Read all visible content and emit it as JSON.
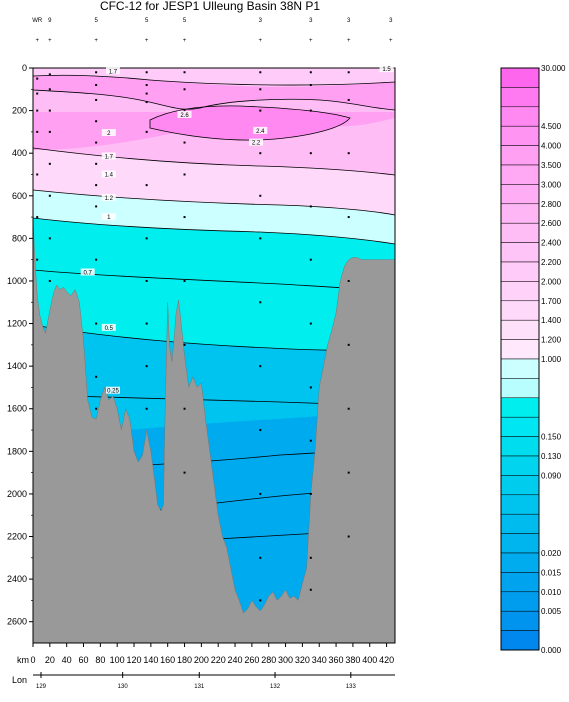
{
  "chart_data": {
    "type": "contour",
    "title": "CFC-12 for JESP1 Ulleung Basin 38N P1",
    "xlabel": "km",
    "x2label": "Lon",
    "x_ticks": [
      0,
      20,
      40,
      60,
      80,
      100,
      120,
      140,
      160,
      180,
      200,
      220,
      240,
      260,
      280,
      300,
      320,
      340,
      360,
      380,
      400,
      420
    ],
    "xlim": [
      0,
      430
    ],
    "lon_ticks": [
      {
        "lon": 129,
        "km": 0
      },
      {
        "lon": 130,
        "km": 97
      },
      {
        "lon": 131,
        "km": 188
      },
      {
        "lon": 132,
        "km": 278
      },
      {
        "lon": 133,
        "km": 368
      }
    ],
    "y_ticks": [
      0,
      200,
      400,
      600,
      800,
      1000,
      1200,
      1400,
      1600,
      1800,
      2000,
      2200,
      2400,
      2600
    ],
    "ylim": [
      0,
      2700
    ],
    "station_labels": [
      "WR",
      "9",
      "5",
      "5",
      "5",
      "3",
      "3",
      "3",
      "3"
    ],
    "station_km": [
      5,
      20,
      75,
      135,
      180,
      270,
      330,
      375,
      425
    ],
    "contour_labels": [
      {
        "text": "1.7",
        "km": 95,
        "depth": 20
      },
      {
        "text": "1.5",
        "km": 420,
        "depth": 10
      },
      {
        "text": "2.6",
        "km": 180,
        "depth": 225
      },
      {
        "text": "2.4",
        "km": 270,
        "depth": 300
      },
      {
        "text": "2.2",
        "km": 265,
        "depth": 355
      },
      {
        "text": "2",
        "km": 90,
        "depth": 310
      },
      {
        "text": "1.7",
        "km": 90,
        "depth": 420
      },
      {
        "text": "1.4",
        "km": 90,
        "depth": 505
      },
      {
        "text": "1.2",
        "km": 90,
        "depth": 615
      },
      {
        "text": "1",
        "km": 90,
        "depth": 705
      },
      {
        "text": "0.7",
        "km": 65,
        "depth": 965
      },
      {
        "text": "0.5",
        "km": 90,
        "depth": 1225
      },
      {
        "text": "0.25",
        "km": 95,
        "depth": 1520
      }
    ],
    "colorbar_levels": [
      "30.000",
      "",
      "",
      "4.500",
      "4.000",
      "3.500",
      "3.000",
      "2.800",
      "2.600",
      "2.400",
      "2.200",
      "2.000",
      "1.700",
      "1.400",
      "1.200",
      "1.000",
      "",
      "",
      "",
      "0.150",
      "0.130",
      "0.090",
      "",
      "",
      "",
      "0.020",
      "0.015",
      "0.010",
      "0.005",
      "0.000"
    ],
    "colorbar_colors": [
      "#ff66ee",
      "#ff7af0",
      "#ff88f1",
      "#ff94f2",
      "#ffa0f3",
      "#ffa8f4",
      "#ffaef5",
      "#ffb6f5",
      "#ffbdf6",
      "#ffc4f7",
      "#ffcbf8",
      "#ffd2f9",
      "#ffd9fa",
      "#ffe0fb",
      "#ffe8fc",
      "#ccffff",
      "#b8fefe",
      "#00eeee",
      "#00e6f2",
      "#00ddee",
      "#00d4ee",
      "#00ccee",
      "#00c4ee",
      "#00bcee",
      "#00b4ee",
      "#00acee",
      "#00a4ee",
      "#009cee",
      "#0094ee",
      "#0088ee"
    ],
    "bathymetry": [
      [
        0,
        700
      ],
      [
        2,
        880
      ],
      [
        5,
        1070
      ],
      [
        8,
        1160
      ],
      [
        12,
        1220
      ],
      [
        15,
        1245
      ],
      [
        18,
        1180
      ],
      [
        22,
        1100
      ],
      [
        25,
        1050
      ],
      [
        28,
        1020
      ],
      [
        32,
        1040
      ],
      [
        36,
        1030
      ],
      [
        40,
        1050
      ],
      [
        45,
        1070
      ],
      [
        50,
        1040
      ],
      [
        55,
        1100
      ],
      [
        60,
        1280
      ],
      [
        65,
        1560
      ],
      [
        70,
        1640
      ],
      [
        75,
        1650
      ],
      [
        80,
        1560
      ],
      [
        85,
        1500
      ],
      [
        90,
        1560
      ],
      [
        95,
        1540
      ],
      [
        100,
        1600
      ],
      [
        105,
        1700
      ],
      [
        110,
        1600
      ],
      [
        115,
        1650
      ],
      [
        120,
        1800
      ],
      [
        125,
        1850
      ],
      [
        130,
        1820
      ],
      [
        135,
        1700
      ],
      [
        140,
        1800
      ],
      [
        145,
        1950
      ],
      [
        148,
        2050
      ],
      [
        152,
        2080
      ],
      [
        155,
        2050
      ],
      [
        157,
        1600
      ],
      [
        160,
        1100
      ],
      [
        162,
        1300
      ],
      [
        165,
        1380
      ],
      [
        168,
        1250
      ],
      [
        170,
        1150
      ],
      [
        173,
        1090
      ],
      [
        176,
        1200
      ],
      [
        180,
        1350
      ],
      [
        185,
        1500
      ],
      [
        190,
        1450
      ],
      [
        195,
        1500
      ],
      [
        200,
        1480
      ],
      [
        205,
        1650
      ],
      [
        210,
        1800
      ],
      [
        215,
        1950
      ],
      [
        220,
        2100
      ],
      [
        225,
        2200
      ],
      [
        230,
        2250
      ],
      [
        235,
        2350
      ],
      [
        240,
        2450
      ],
      [
        245,
        2500
      ],
      [
        250,
        2560
      ],
      [
        255,
        2540
      ],
      [
        260,
        2500
      ],
      [
        265,
        2530
      ],
      [
        270,
        2550
      ],
      [
        275,
        2520
      ],
      [
        280,
        2480
      ],
      [
        285,
        2460
      ],
      [
        290,
        2500
      ],
      [
        295,
        2480
      ],
      [
        300,
        2450
      ],
      [
        305,
        2490
      ],
      [
        310,
        2480
      ],
      [
        315,
        2500
      ],
      [
        320,
        2420
      ],
      [
        325,
        2350
      ],
      [
        330,
        2000
      ],
      [
        335,
        1800
      ],
      [
        340,
        1500
      ],
      [
        345,
        1400
      ],
      [
        350,
        1300
      ],
      [
        355,
        1230
      ],
      [
        360,
        1150
      ],
      [
        365,
        1000
      ],
      [
        370,
        930
      ],
      [
        375,
        900
      ],
      [
        380,
        890
      ],
      [
        385,
        890
      ],
      [
        390,
        900
      ]
    ]
  }
}
